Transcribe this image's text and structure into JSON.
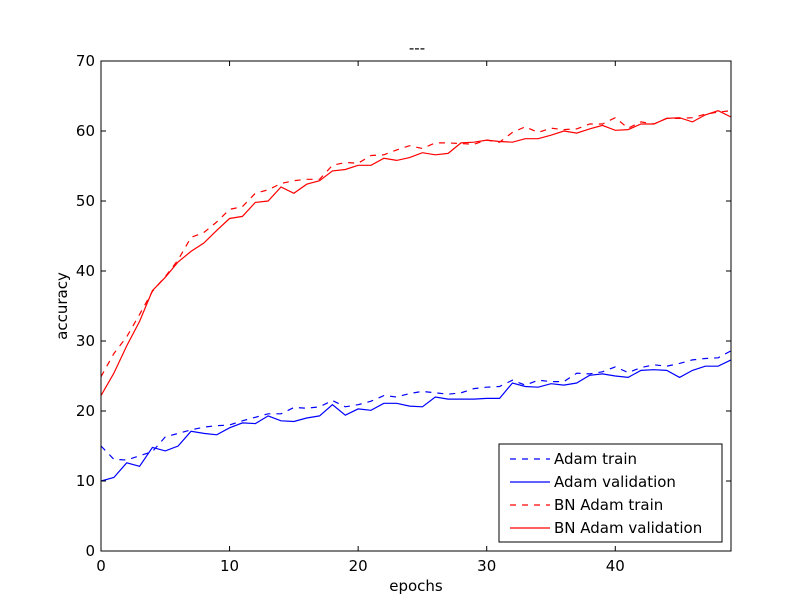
{
  "chart_data": {
    "type": "line",
    "title": "---",
    "xlabel": "epochs",
    "ylabel": "accuracy",
    "xlim": [
      0,
      49
    ],
    "ylim": [
      0,
      70
    ],
    "xticks": [
      0,
      10,
      20,
      30,
      40
    ],
    "yticks": [
      0,
      10,
      20,
      30,
      40,
      50,
      60,
      70
    ],
    "grid": false,
    "legend_position": "lower-right",
    "x": [
      0,
      1,
      2,
      3,
      4,
      5,
      6,
      7,
      8,
      9,
      10,
      11,
      12,
      13,
      14,
      15,
      16,
      17,
      18,
      19,
      20,
      21,
      22,
      23,
      24,
      25,
      26,
      27,
      28,
      29,
      30,
      31,
      32,
      33,
      34,
      35,
      36,
      37,
      38,
      39,
      40,
      41,
      42,
      43,
      44,
      45,
      46,
      47,
      48,
      49
    ],
    "series": [
      {
        "name": "Adam train",
        "color": "#0000ff",
        "dash": "dashed",
        "values": [
          15.0,
          13.1,
          13.0,
          13.6,
          14.2,
          16.3,
          16.8,
          17.3,
          17.7,
          17.9,
          18.0,
          18.6,
          19.1,
          19.6,
          19.6,
          20.5,
          20.4,
          20.6,
          21.5,
          20.6,
          20.9,
          21.4,
          22.2,
          22.0,
          22.5,
          22.8,
          22.6,
          22.4,
          22.6,
          23.2,
          23.4,
          23.5,
          24.4,
          23.7,
          24.4,
          24.2,
          24.2,
          25.4,
          25.3,
          25.6,
          26.3,
          25.5,
          26.2,
          26.6,
          26.4,
          26.8,
          27.3,
          27.5,
          27.6,
          28.6
        ]
      },
      {
        "name": "Adam validation",
        "color": "#0000ff",
        "dash": "solid",
        "values": [
          10.0,
          10.5,
          12.6,
          12.1,
          14.8,
          14.3,
          15.0,
          17.1,
          16.8,
          16.6,
          17.6,
          18.3,
          18.2,
          19.3,
          18.6,
          18.5,
          19.0,
          19.3,
          20.9,
          19.4,
          20.3,
          20.1,
          21.1,
          21.1,
          20.7,
          20.6,
          22.0,
          21.7,
          21.7,
          21.7,
          21.8,
          21.8,
          24.0,
          23.5,
          23.4,
          23.9,
          23.7,
          24.0,
          25.1,
          25.3,
          25.0,
          24.8,
          25.8,
          25.9,
          25.8,
          24.8,
          25.8,
          26.4,
          26.4,
          27.3
        ]
      },
      {
        "name": "BN Adam train",
        "color": "#ff0000",
        "dash": "dashed",
        "values": [
          24.9,
          28.2,
          30.6,
          33.8,
          37.1,
          39.2,
          41.6,
          44.8,
          45.5,
          47.0,
          48.8,
          49.2,
          51.1,
          51.6,
          52.5,
          52.9,
          53.1,
          53.1,
          55.1,
          55.5,
          55.4,
          56.5,
          56.6,
          57.3,
          57.9,
          57.5,
          58.3,
          58.3,
          58.2,
          58.1,
          58.7,
          58.4,
          59.8,
          60.6,
          59.8,
          60.4,
          60.2,
          60.3,
          61.0,
          61.0,
          61.9,
          60.4,
          61.3,
          61.0,
          61.8,
          61.8,
          61.9,
          62.4,
          62.7,
          62.9
        ]
      },
      {
        "name": "BN Adam validation",
        "color": "#ff0000",
        "dash": "solid",
        "values": [
          22.2,
          25.4,
          29.3,
          32.8,
          37.2,
          39.1,
          41.3,
          42.8,
          44.0,
          45.8,
          47.5,
          47.8,
          49.8,
          50.0,
          52.0,
          51.1,
          52.4,
          52.9,
          54.3,
          54.5,
          55.1,
          55.1,
          56.1,
          55.8,
          56.2,
          56.9,
          56.6,
          56.8,
          58.3,
          58.4,
          58.7,
          58.5,
          58.4,
          58.9,
          58.9,
          59.4,
          60.0,
          59.7,
          60.3,
          60.8,
          60.1,
          60.2,
          61.0,
          61.0,
          61.8,
          61.9,
          61.3,
          62.3,
          62.9,
          62.0
        ]
      }
    ]
  }
}
